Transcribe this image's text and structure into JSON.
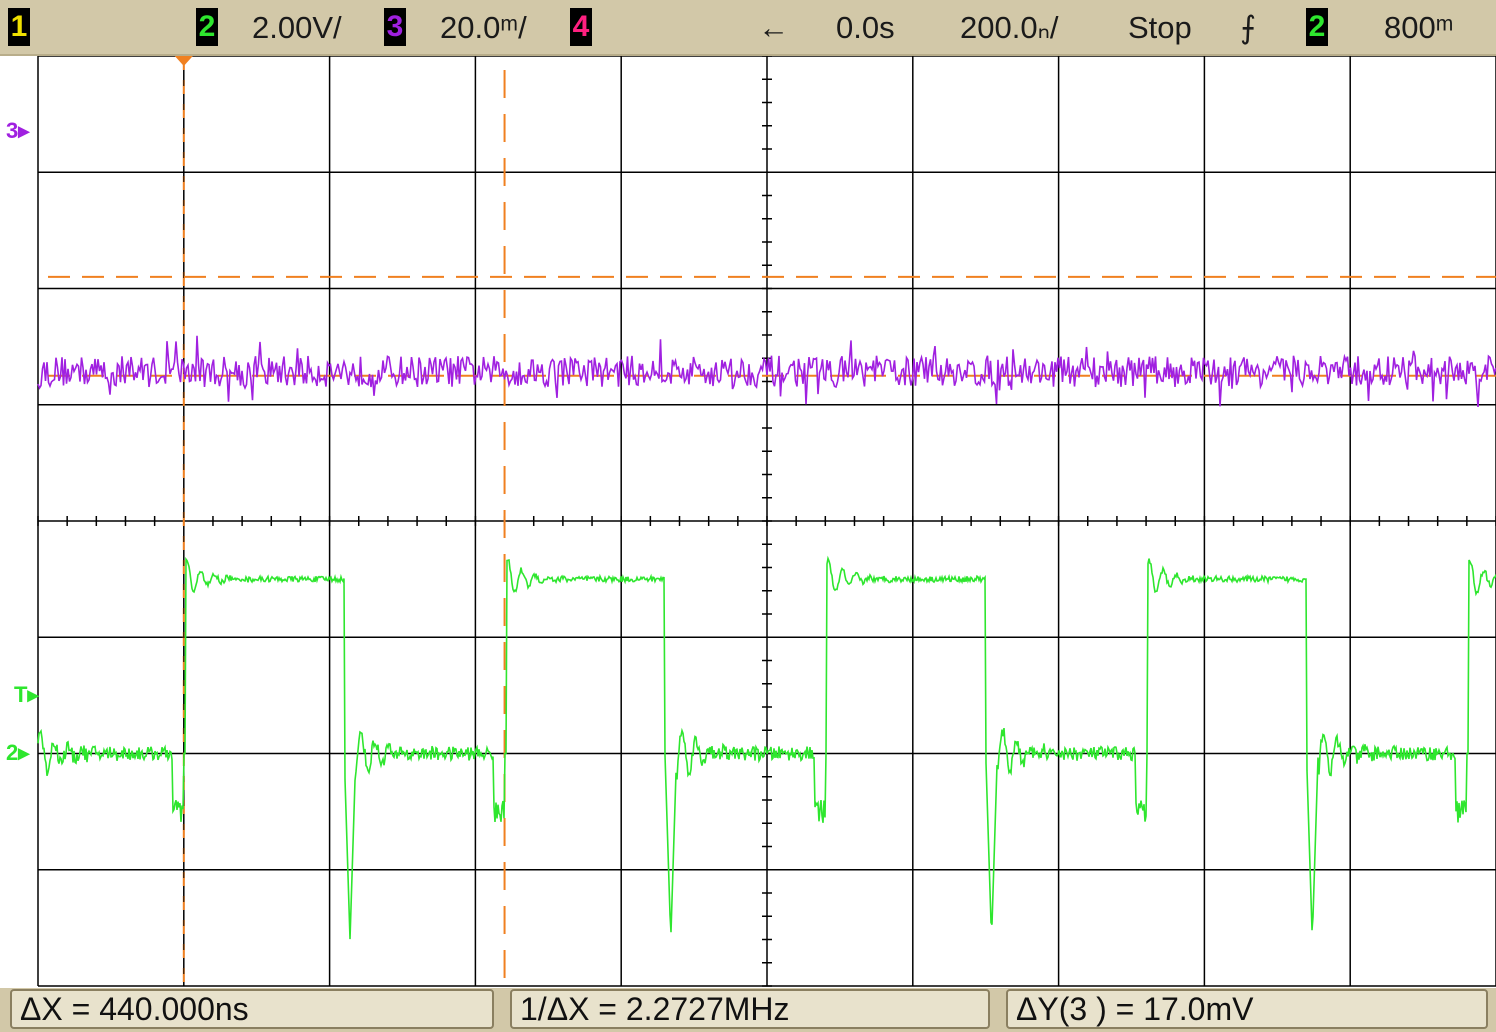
{
  "topbar": {
    "ch1_label": "1",
    "ch2_label": "2",
    "ch2_scale": "2.00V/",
    "ch3_label": "3",
    "ch3_scale": "20.0ᵐ/",
    "ch4_label": "4",
    "delay_arrow": "←",
    "delay": "0.0s",
    "timebase": "200.0ₙ/",
    "run_state": "Stop",
    "trigger_slope_icon": "falling-edge-icon",
    "trigger_slope_glyph": "⨍",
    "trigger_source": "2",
    "trigger_level": "800ᵐ"
  },
  "markers": {
    "ch3_marker": "3",
    "trigger_marker": "T",
    "ch2_marker": "2"
  },
  "measurements": {
    "delta_x": "ΔX = 440.000ns",
    "inv_delta_x": "1/ΔX = 2.2727MHz",
    "delta_y": "ΔY(3 ) = 17.0mV"
  },
  "colors": {
    "ch1": "#f0e000",
    "ch2": "#2ee62e",
    "ch3": "#a020e0",
    "ch4": "#ff2080",
    "cursor": "#f08020",
    "grid": "#000000",
    "background": "#ffffff",
    "bar": "#d2c8a8"
  },
  "chart_data": {
    "type": "line",
    "time_per_div_ns": 200,
    "horizontal_divisions": 10,
    "vertical_divisions": 8,
    "x": [
      0,
      2000
    ],
    "series": [
      {
        "channel": 2,
        "volts_per_div": 2.0,
        "waveform": "square",
        "period_ns": 440,
        "high_level_div": 1.5,
        "low_level_div": 0.0,
        "undershoot_div": -1.6,
        "color": "#2ee62e"
      },
      {
        "channel": 3,
        "mv_per_div": 20.0,
        "waveform": "noise",
        "level_div": -0.8,
        "noise_pp_mv": 17.0,
        "color": "#a020e0"
      }
    ],
    "cursors": {
      "x1_ns": 0,
      "x2_ns": 440,
      "y_upper_div": -0.4,
      "y_lower_div": -1.25
    }
  }
}
